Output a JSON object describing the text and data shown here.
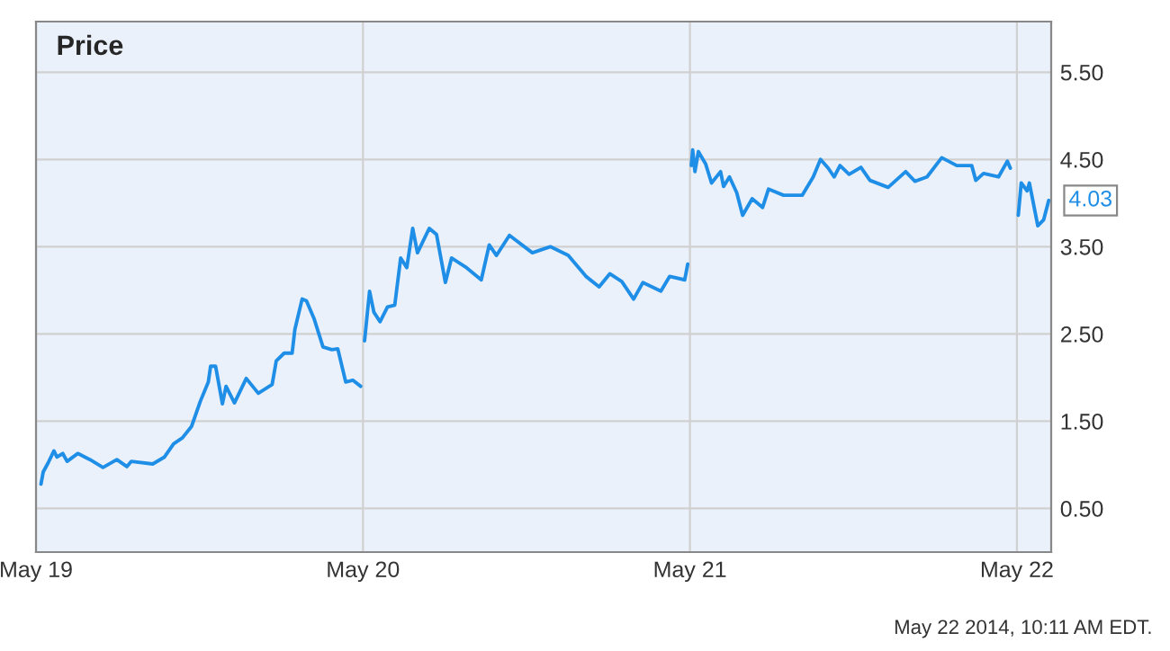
{
  "chart_data": {
    "type": "line",
    "title": "Price",
    "x": [
      "2014-05-19T00:22",
      "2014-05-19T00:32",
      "2014-05-19T00:53",
      "2014-05-19T01:19",
      "2014-05-19T01:32",
      "2014-05-19T01:58",
      "2014-05-19T02:17",
      "2014-05-19T03:04",
      "2014-05-19T03:58",
      "2014-05-19T04:55",
      "2014-05-19T05:56",
      "2014-05-19T06:40",
      "2014-05-19T07:00",
      "2014-05-19T08:34",
      "2014-05-19T09:26",
      "2014-05-19T10:06",
      "2014-05-19T10:45",
      "2014-05-19T11:25",
      "2014-05-19T12:04",
      "2014-05-19T12:39",
      "2014-05-19T12:49",
      "2014-05-19T13:11",
      "2014-05-19T13:41",
      "2014-05-19T13:57",
      "2014-05-19T14:34",
      "2014-05-19T15:26",
      "2014-05-19T16:19",
      "2014-05-19T17:20",
      "2014-05-19T17:38",
      "2014-05-19T18:13",
      "2014-05-19T18:48",
      "2014-05-19T19:00",
      "2014-05-19T19:32",
      "2014-05-19T19:51",
      "2014-05-19T20:24",
      "2014-05-19T21:04",
      "2014-05-19T21:43",
      "2014-05-19T22:09",
      "2014-05-19T22:44",
      "2014-05-19T23:15",
      "2014-05-19T23:50",
      "2014-05-19T23:57",
      "2014-05-20T00:07",
      "2014-05-20T00:29",
      "2014-05-20T00:48",
      "2014-05-20T01:15",
      "2014-05-20T01:48",
      "2014-05-20T02:20",
      "2014-05-20T02:46",
      "2014-05-20T03:13",
      "2014-05-20T03:39",
      "2014-05-20T04:00",
      "2014-05-20T04:52",
      "2014-05-20T05:24",
      "2014-05-20T06:03",
      "2014-05-20T06:30",
      "2014-05-20T07:36",
      "2014-05-20T08:41",
      "2014-05-20T09:16",
      "2014-05-20T09:48",
      "2014-05-20T10:45",
      "2014-05-20T12:26",
      "2014-05-20T13:45",
      "2014-05-20T15:04",
      "2014-05-20T16:22",
      "2014-05-20T17:20",
      "2014-05-20T18:07",
      "2014-05-20T19:00",
      "2014-05-20T19:52",
      "2014-05-20T20:33",
      "2014-05-20T21:52",
      "2014-05-20T22:31",
      "2014-05-20T23:37",
      "2014-05-20T23:50",
      "2014-05-20T23:57",
      "2014-05-21T00:06",
      "2014-05-21T00:12",
      "2014-05-21T00:22",
      "2014-05-21T00:37",
      "2014-05-21T01:09",
      "2014-05-21T01:35",
      "2014-05-21T02:15",
      "2014-05-21T02:28",
      "2014-05-21T02:54",
      "2014-05-21T03:26",
      "2014-05-21T03:52",
      "2014-05-21T04:34",
      "2014-05-21T05:20",
      "2014-05-21T05:46",
      "2014-05-21T06:52",
      "2014-05-21T08:15",
      "2014-05-21T09:03",
      "2014-05-21T09:35",
      "2014-05-21T10:09",
      "2014-05-21T10:35",
      "2014-05-21T11:01",
      "2014-05-21T11:41",
      "2014-05-21T12:33",
      "2014-05-21T13:13",
      "2014-05-21T14:33",
      "2014-05-21T15:50",
      "2014-05-21T16:31",
      "2014-05-21T17:24",
      "2014-05-21T18:29",
      "2014-05-21T19:35",
      "2014-05-21T20:41",
      "2014-05-21T20:59",
      "2014-05-21T21:33",
      "2014-05-21T22:39",
      "2014-05-21T23:18",
      "2014-05-21T23:31",
      "2014-05-21T23:53",
      "2014-05-22T00:06",
      "2014-05-22T00:19",
      "2014-05-22T00:45",
      "2014-05-22T00:55",
      "2014-05-22T01:32",
      "2014-05-22T01:58",
      "2014-05-22T02:20"
    ],
    "series": [
      {
        "color": "#1f8ee6",
        "values": [
          0.78,
          0.92,
          1.02,
          1.16,
          1.09,
          1.13,
          1.04,
          1.13,
          1.06,
          0.97,
          1.06,
          0.98,
          1.04,
          1.01,
          1.09,
          1.24,
          1.31,
          1.44,
          1.73,
          1.95,
          2.13,
          2.13,
          1.7,
          1.9,
          1.71,
          1.99,
          1.82,
          1.92,
          2.19,
          2.28,
          2.28,
          2.55,
          2.9,
          2.88,
          2.68,
          2.35,
          2.32,
          2.33,
          1.95,
          1.97,
          1.9,
          null,
          2.42,
          2.99,
          2.75,
          2.64,
          2.81,
          2.83,
          3.37,
          3.26,
          3.71,
          3.43,
          3.71,
          3.64,
          3.09,
          3.37,
          3.26,
          3.12,
          3.52,
          3.4,
          3.63,
          3.43,
          3.5,
          3.4,
          3.16,
          3.04,
          3.19,
          3.1,
          2.9,
          3.09,
          2.99,
          3.16,
          3.12,
          3.3,
          null,
          4.43,
          4.61,
          4.36,
          4.59,
          4.45,
          4.23,
          4.36,
          4.19,
          4.3,
          4.12,
          3.86,
          4.05,
          3.95,
          4.16,
          4.09,
          4.09,
          4.3,
          4.5,
          4.4,
          4.3,
          4.43,
          4.33,
          4.41,
          4.26,
          4.18,
          4.36,
          4.25,
          4.3,
          4.52,
          4.43,
          4.43,
          4.26,
          4.34,
          4.3,
          4.48,
          4.4,
          null,
          3.86,
          4.23,
          4.14,
          4.23,
          3.74,
          3.81,
          4.03
        ]
      }
    ],
    "xlim": [
      "2014-05-19T00:00",
      "2014-05-22T02:31"
    ],
    "xticks": [
      {
        "value": "2014-05-19",
        "label": "May 19"
      },
      {
        "value": "2014-05-20",
        "label": "May 20"
      },
      {
        "value": "2014-05-21",
        "label": "May 21"
      },
      {
        "value": "2014-05-22",
        "label": "May 22"
      }
    ],
    "ylim": [
      0.0,
      6.08
    ],
    "yticks": [
      {
        "value": 0.5,
        "label": "0.50"
      },
      {
        "value": 1.5,
        "label": "1.50"
      },
      {
        "value": 2.5,
        "label": "2.50"
      },
      {
        "value": 3.5,
        "label": "3.50"
      },
      {
        "value": 4.5,
        "label": "4.50"
      },
      {
        "value": 5.5,
        "label": "5.50"
      }
    ],
    "grid": true,
    "annotations": [
      {
        "text": "4.03",
        "x": "2014-05-22T02:20",
        "y": 4.03
      },
      "May 22 2014, 10:11 AM EDT."
    ]
  }
}
